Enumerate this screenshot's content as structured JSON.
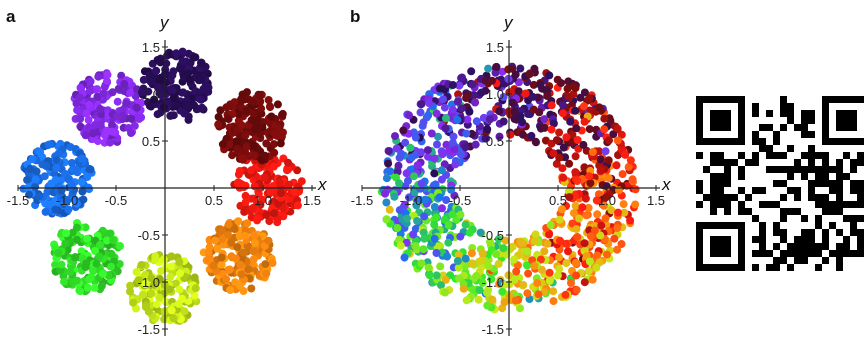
{
  "chart_data": [
    {
      "panel_label": "a",
      "type": "scatter",
      "xlabel": "x",
      "ylabel": "y",
      "xlim": [
        -1.5,
        1.5
      ],
      "ylim": [
        -1.5,
        1.5
      ],
      "x_ticks": [
        "-1.5",
        "-1.0",
        "-0.5",
        "0.5",
        "1.0",
        "1.5"
      ],
      "y_ticks": [
        "1.5",
        "1.0",
        "0.5",
        "-0.5",
        "-1.0",
        "-1.5"
      ],
      "grid": false,
      "clusters": [
        {
          "center": [
            1.05,
            0.0
          ],
          "color": "#ff1a12"
        },
        {
          "center": [
            0.75,
            -0.73
          ],
          "color": "#ff8a10"
        },
        {
          "center": [
            0.0,
            -1.08
          ],
          "color": "#c8ea1a"
        },
        {
          "center": [
            -0.8,
            -0.73
          ],
          "color": "#33e82a"
        },
        {
          "center": [
            -1.1,
            0.1
          ],
          "color": "#1c72ee"
        },
        {
          "center": [
            -0.58,
            0.85
          ],
          "color": "#8a2cf0"
        },
        {
          "center": [
            0.12,
            1.08
          ],
          "color": "#2a0e5a"
        },
        {
          "center": [
            0.88,
            0.65
          ],
          "color": "#7a0c0c"
        }
      ]
    },
    {
      "panel_label": "b",
      "type": "scatter",
      "xlabel": "x",
      "ylabel": "y",
      "xlim": [
        -1.5,
        1.5
      ],
      "ylim": [
        -1.5,
        1.5
      ],
      "x_ticks": [
        "-1.5",
        "-1.0",
        "-0.5",
        "0.5",
        "1.0",
        "1.5"
      ],
      "y_ticks": [
        "1.5",
        "1.0",
        "0.5",
        "-0.5",
        "-1.0",
        "-1.5"
      ],
      "grid": false,
      "ring": {
        "inner_radius": 0.55,
        "outer_radius": 1.3
      }
    }
  ],
  "qr_code": {
    "description_icon": "qr-code-icon"
  }
}
